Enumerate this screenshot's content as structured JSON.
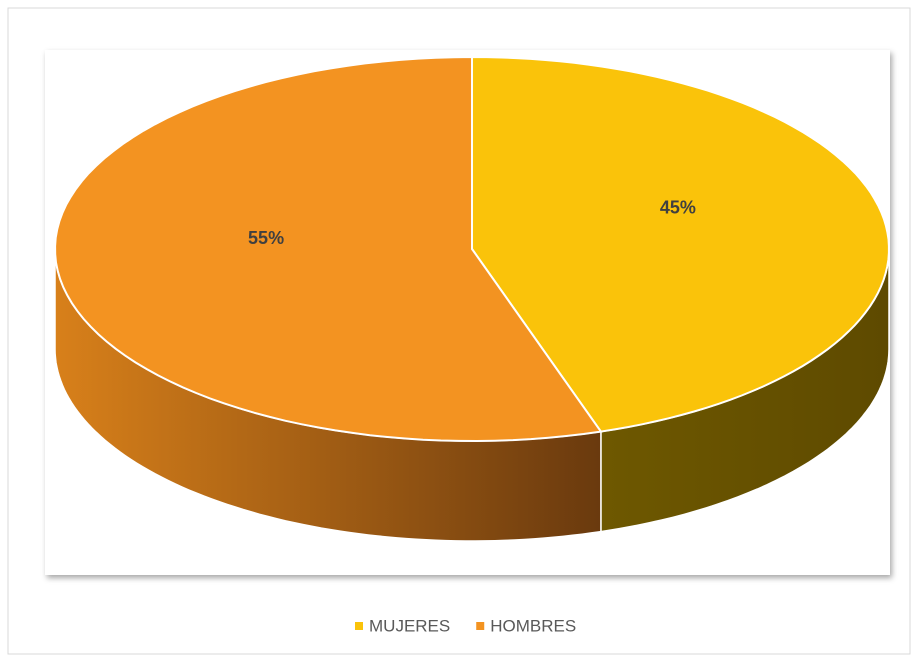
{
  "chart_data": {
    "type": "pie",
    "categories": [
      "MUJERES",
      "HOMBRES"
    ],
    "values": [
      45,
      55
    ],
    "value_labels": [
      "45%",
      "55%"
    ],
    "colors": [
      "#FAC30A",
      "#F39321"
    ],
    "legend": "bottom"
  }
}
